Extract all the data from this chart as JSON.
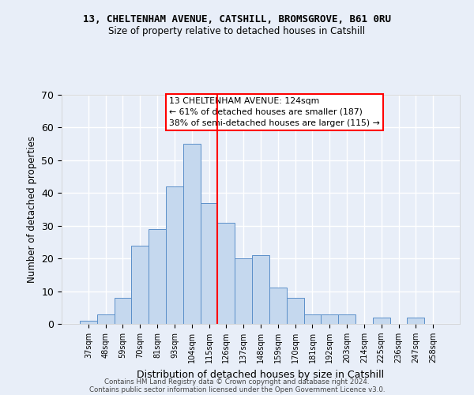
{
  "title1": "13, CHELTENHAM AVENUE, CATSHILL, BROMSGROVE, B61 0RU",
  "title2": "Size of property relative to detached houses in Catshill",
  "xlabel": "Distribution of detached houses by size in Catshill",
  "ylabel": "Number of detached properties",
  "categories": [
    "37sqm",
    "48sqm",
    "59sqm",
    "70sqm",
    "81sqm",
    "93sqm",
    "104sqm",
    "115sqm",
    "126sqm",
    "137sqm",
    "148sqm",
    "159sqm",
    "170sqm",
    "181sqm",
    "192sqm",
    "203sqm",
    "214sqm",
    "225sqm",
    "236sqm",
    "247sqm",
    "258sqm"
  ],
  "values": [
    1,
    3,
    8,
    24,
    29,
    42,
    55,
    37,
    31,
    20,
    21,
    11,
    8,
    3,
    3,
    3,
    0,
    2,
    0,
    2,
    0
  ],
  "bar_color": "#c5d8ee",
  "bar_edge_color": "#5b8fc9",
  "vline_x_index": 7.5,
  "vline_color": "red",
  "annotation_text": "13 CHELTENHAM AVENUE: 124sqm\n← 61% of detached houses are smaller (187)\n38% of semi-detached houses are larger (115) →",
  "annotation_box_color": "white",
  "annotation_box_edge_color": "red",
  "ylim": [
    0,
    70
  ],
  "yticks": [
    0,
    10,
    20,
    30,
    40,
    50,
    60,
    70
  ],
  "footer1": "Contains HM Land Registry data © Crown copyright and database right 2024.",
  "footer2": "Contains public sector information licensed under the Open Government Licence v3.0.",
  "bg_color": "#e8eef8",
  "grid_color": "#ffffff"
}
